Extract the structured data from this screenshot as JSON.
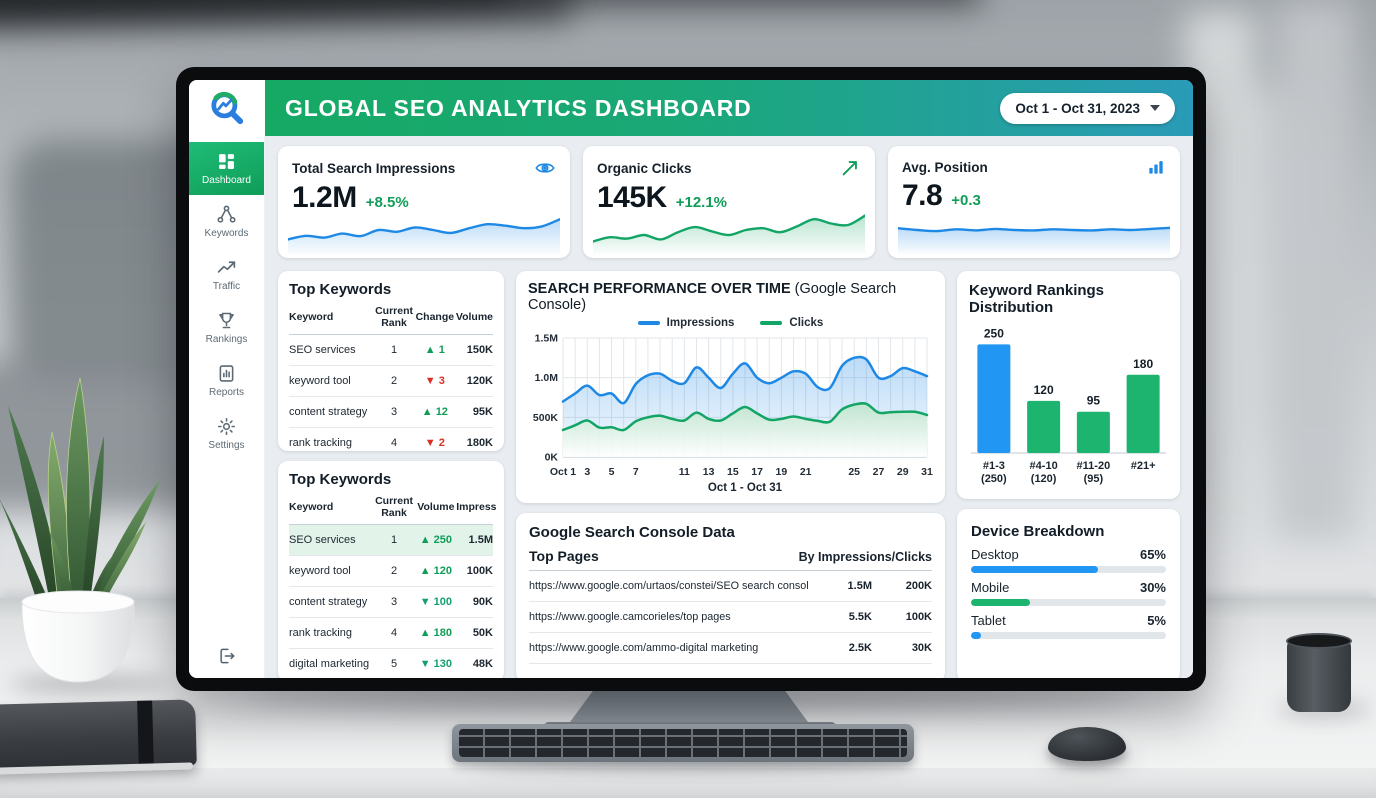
{
  "header": {
    "title": "GLOBAL SEO ANALYTICS DASHBOARD",
    "date_range": "Oct 1 - Oct 31, 2023"
  },
  "sidebar": {
    "items": [
      {
        "label": "Dashboard",
        "icon": "dashboard-grid-icon",
        "active": true
      },
      {
        "label": "Keywords",
        "icon": "keywords-nodes-icon",
        "active": false
      },
      {
        "label": "Traffic",
        "icon": "traffic-trend-icon",
        "active": false
      },
      {
        "label": "Rankings",
        "icon": "rankings-trophy-icon",
        "active": false
      },
      {
        "label": "Reports",
        "icon": "reports-doc-icon",
        "active": false
      },
      {
        "label": "Settings",
        "icon": "settings-gear-icon",
        "active": false
      }
    ]
  },
  "kpis": [
    {
      "label": "Total Search Impressions",
      "value": "1.2M",
      "change": "+8.5%",
      "icon": "eye-icon"
    },
    {
      "label": "Organic Clicks",
      "value": "145K",
      "change": "+12.1%",
      "icon": "trend-up-icon"
    },
    {
      "label": "Avg. Position",
      "value": "7.8",
      "change": "+0.3",
      "icon": "bar-chart-icon"
    }
  ],
  "top_keywords_rank": {
    "title": "Top Keywords",
    "columns": [
      "Keyword",
      "Current Rank",
      "Change",
      "Volume"
    ],
    "rows": [
      {
        "keyword": "SEO services",
        "rank": "1",
        "arrow": "▲",
        "change": "1",
        "dir": "up",
        "volume": "150K"
      },
      {
        "keyword": "keyword tool",
        "rank": "2",
        "arrow": "▼",
        "change": "3",
        "dir": "down-red",
        "volume": "120K"
      },
      {
        "keyword": "content strategy",
        "rank": "3",
        "arrow": "▲",
        "change": "12",
        "dir": "up",
        "volume": "95K"
      },
      {
        "keyword": "rank tracking",
        "rank": "4",
        "arrow": "▼",
        "change": "2",
        "dir": "down-red",
        "volume": "180K"
      }
    ]
  },
  "top_keywords_volume": {
    "title": "Top Keywords",
    "columns": [
      "Keyword",
      "Current Rank",
      "Volume",
      "Impress"
    ],
    "rows": [
      {
        "keyword": "SEO services",
        "rank": "1",
        "arrow": "▲",
        "change": "250",
        "dir": "up",
        "impressions": "1.5M"
      },
      {
        "keyword": "keyword tool",
        "rank": "2",
        "arrow": "▲",
        "change": "120",
        "dir": "up",
        "impressions": "100K"
      },
      {
        "keyword": "content strategy",
        "rank": "3",
        "arrow": "▼",
        "change": "100",
        "dir": "down-green",
        "impressions": "90K"
      },
      {
        "keyword": "rank tracking",
        "rank": "4",
        "arrow": "▲",
        "change": "180",
        "dir": "up",
        "impressions": "50K"
      },
      {
        "keyword": "digital marketing",
        "rank": "5",
        "arrow": "▼",
        "change": "130",
        "dir": "down-green",
        "impressions": "48K"
      }
    ]
  },
  "gsc": {
    "title": "Google Search Console Data",
    "left_header": "Top Pages",
    "right_header": "By Impressions/Clicks",
    "rows": [
      {
        "url": "https://www.google.com/urtaos/constei/SEO search console",
        "impressions": "1.5M",
        "clicks": "200K"
      },
      {
        "url": "https://www.google.camcorieles/top pages",
        "impressions": "5.5K",
        "clicks": "100K"
      },
      {
        "url": "https://www.google.com/ammo-digital marketing",
        "impressions": "2.5K",
        "clicks": "30K"
      }
    ]
  },
  "device_breakdown": {
    "title": "Device Breakdown",
    "rows": [
      {
        "label": "Desktop",
        "pct": 65,
        "pct_label": "65%",
        "color": "#2196f3"
      },
      {
        "label": "Mobile",
        "pct": 30,
        "pct_label": "30%",
        "color": "#1db470"
      },
      {
        "label": "Tablet",
        "pct": 5,
        "pct_label": "5%",
        "color": "#2196f3"
      }
    ]
  },
  "colors": {
    "accent_green": "#0f9d58",
    "accent_red": "#d93025",
    "line_blue": "#1e88e5",
    "line_green": "#12a565",
    "bar_blue": "#2196f3",
    "bar_green": "#1db470",
    "header_gradient_left": "#16a964",
    "header_gradient_right": "#2a9bb8"
  },
  "chart_data": [
    {
      "id": "impressions-sparkline",
      "type": "area",
      "color": "#1e88e5",
      "ylim": [
        0,
        100
      ],
      "values": [
        24,
        34,
        29,
        40,
        33,
        50,
        45,
        57,
        50,
        42,
        55,
        66,
        62,
        55,
        60,
        80
      ]
    },
    {
      "id": "clicks-sparkline",
      "type": "area",
      "color": "#12a565",
      "ylim": [
        0,
        100
      ],
      "values": [
        18,
        30,
        26,
        36,
        24,
        44,
        58,
        46,
        36,
        50,
        55,
        44,
        60,
        80,
        68,
        64,
        90
      ]
    },
    {
      "id": "position-sparkline",
      "type": "area",
      "color": "#1e88e5",
      "ylim": [
        0,
        100
      ],
      "values": [
        55,
        50,
        47,
        52,
        49,
        53,
        50,
        49,
        52,
        50,
        49,
        52,
        50,
        53,
        56
      ]
    },
    {
      "id": "search-performance",
      "type": "line",
      "title": "SEARCH PERFORMANCE OVER TIME",
      "subtitle": "(Google Search Console)",
      "xlabel": "Oct 1 - Oct 31",
      "grid": true,
      "legend_position": "top",
      "ylim": [
        0,
        1500
      ],
      "x": [
        1,
        2,
        3,
        4,
        5,
        6,
        7,
        8,
        9,
        10,
        11,
        12,
        13,
        14,
        15,
        16,
        17,
        18,
        19,
        20,
        21,
        22,
        23,
        24,
        25,
        26,
        27,
        28,
        29,
        30,
        31
      ],
      "yticks": [
        {
          "v": 0,
          "label": "0K"
        },
        {
          "v": 500,
          "label": "500K"
        },
        {
          "v": 1000,
          "label": "1.0M"
        },
        {
          "v": 1500,
          "label": "1.5M"
        }
      ],
      "xticks": [
        {
          "v": 1,
          "label": "Oct 1"
        },
        {
          "v": 3,
          "label": "3"
        },
        {
          "v": 5,
          "label": "5"
        },
        {
          "v": 7,
          "label": "7"
        },
        {
          "v": 11,
          "label": "11"
        },
        {
          "v": 13,
          "label": "13"
        },
        {
          "v": 15,
          "label": "15"
        },
        {
          "v": 17,
          "label": "17"
        },
        {
          "v": 19,
          "label": "19"
        },
        {
          "v": 21,
          "label": "21"
        },
        {
          "v": 25,
          "label": "25"
        },
        {
          "v": 27,
          "label": "27"
        },
        {
          "v": 29,
          "label": "29"
        },
        {
          "v": 31,
          "label": "31"
        }
      ],
      "series": [
        {
          "name": "Impressions",
          "color": "#1e88e5",
          "values": [
            700,
            800,
            900,
            780,
            800,
            680,
            920,
            1030,
            1050,
            960,
            930,
            1130,
            1000,
            870,
            1050,
            1180,
            1000,
            930,
            1000,
            1080,
            1050,
            880,
            870,
            1150,
            1250,
            1230,
            1000,
            1020,
            1120,
            1080,
            1020
          ]
        },
        {
          "name": "Clicks",
          "color": "#12a565",
          "values": [
            340,
            400,
            460,
            370,
            375,
            340,
            450,
            500,
            520,
            480,
            460,
            560,
            480,
            460,
            550,
            630,
            550,
            470,
            480,
            510,
            480,
            455,
            445,
            600,
            660,
            670,
            560,
            565,
            570,
            570,
            530
          ]
        }
      ]
    },
    {
      "id": "rankings-distribution",
      "type": "bar",
      "title": "Keyword Rankings Distribution",
      "categories": [
        [
          "#1-3",
          "(250)"
        ],
        [
          "#4-10",
          "(120)"
        ],
        [
          "#11-20",
          "(95)"
        ],
        [
          "#21+",
          ""
        ]
      ],
      "values": [
        250,
        120,
        95,
        180
      ],
      "colors": [
        "#2196f3",
        "#1db470",
        "#1db470",
        "#1db470"
      ],
      "ylim": [
        0,
        260
      ]
    }
  ]
}
